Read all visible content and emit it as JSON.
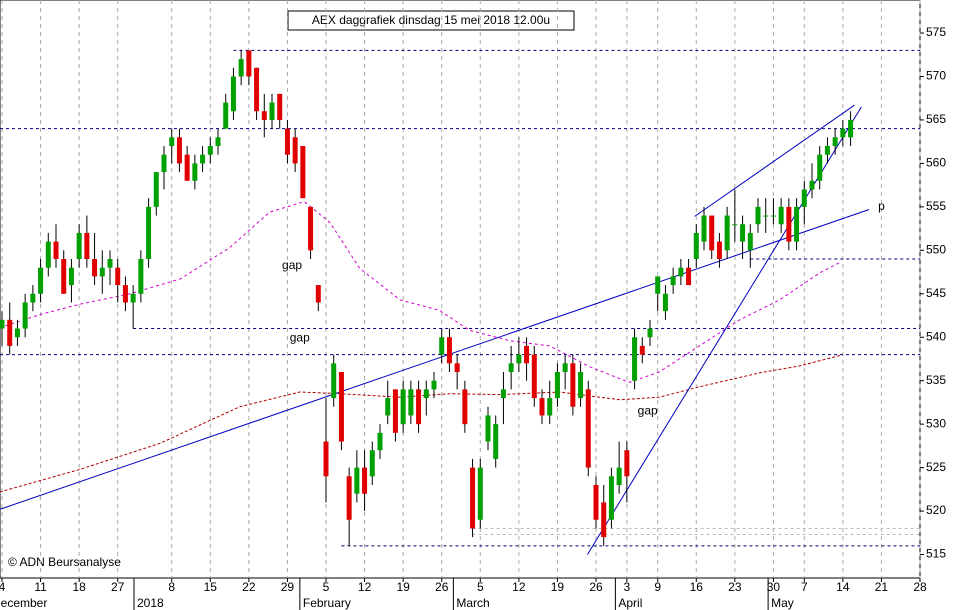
{
  "chart_data": {
    "type": "candlestick",
    "title": "AEX daggrafiek dinsdag 15 mei 2018 12.00u",
    "credit": "© ADN Beursanalyse",
    "up_color": "#00a000",
    "down_color": "#e00000",
    "xlim": [
      -0.26,
      119
    ],
    "ylim": [
      512.3,
      578.8
    ],
    "yticks": [
      515,
      520,
      525,
      530,
      535,
      540,
      545,
      550,
      555,
      560,
      565,
      570,
      575
    ],
    "xticks": [
      {
        "value": 0,
        "label": "4"
      },
      {
        "value": 5,
        "label": "11"
      },
      {
        "value": 10,
        "label": "18"
      },
      {
        "value": 15,
        "label": "27"
      },
      {
        "value": 22,
        "label": "8"
      },
      {
        "value": 27,
        "label": "15"
      },
      {
        "value": 32,
        "label": "22"
      },
      {
        "value": 37,
        "label": "29"
      },
      {
        "value": 42,
        "label": "5"
      },
      {
        "value": 47,
        "label": "12"
      },
      {
        "value": 52,
        "label": "19"
      },
      {
        "value": 57,
        "label": "26"
      },
      {
        "value": 62,
        "label": "5"
      },
      {
        "value": 67,
        "label": "12"
      },
      {
        "value": 72,
        "label": "19"
      },
      {
        "value": 77,
        "label": "26"
      },
      {
        "value": 81,
        "label": "3"
      },
      {
        "value": 85,
        "label": "9"
      },
      {
        "value": 90,
        "label": "16"
      },
      {
        "value": 95,
        "label": "23"
      },
      {
        "value": 100,
        "label": "30"
      },
      {
        "value": 104,
        "label": "7"
      },
      {
        "value": 109,
        "label": "14"
      },
      {
        "value": 114,
        "label": "21"
      },
      {
        "value": 119,
        "label": "28"
      }
    ],
    "month_labels": [
      {
        "value": -1.3,
        "label": "December"
      },
      {
        "value": 17.5,
        "label": "2018"
      },
      {
        "value": 39.0,
        "label": "February"
      },
      {
        "value": 58.9,
        "label": "March"
      },
      {
        "value": 79.9,
        "label": "April"
      },
      {
        "value": 99.7,
        "label": "May"
      }
    ],
    "grid": true,
    "x": [
      0,
      1,
      2,
      3,
      4,
      5,
      6,
      7,
      8,
      9,
      10,
      11,
      12,
      13,
      14,
      15,
      16,
      17,
      18,
      19,
      20,
      21,
      22,
      23,
      24,
      25,
      26,
      27,
      28,
      29,
      30,
      31,
      32,
      33,
      34,
      35,
      36,
      37,
      38,
      39,
      40,
      41,
      42,
      43,
      44,
      45,
      46,
      47,
      48,
      49,
      50,
      51,
      52,
      53,
      54,
      55,
      56,
      57,
      58,
      59,
      60,
      61,
      62,
      63,
      64,
      65,
      66,
      67,
      68,
      69,
      70,
      71,
      72,
      73,
      74,
      75,
      76,
      77,
      78,
      79,
      80,
      81,
      82,
      83,
      84,
      85,
      86,
      87,
      88,
      89,
      90,
      91,
      92,
      93,
      94,
      95,
      96,
      97,
      98,
      99,
      100,
      101,
      102,
      103,
      104,
      105,
      106,
      107,
      108,
      109,
      110
    ],
    "open": [
      541,
      542,
      540,
      541,
      544,
      545,
      548,
      551,
      549,
      546,
      549,
      552,
      549,
      547,
      548,
      548,
      546,
      544,
      545,
      549,
      555,
      559,
      562,
      563,
      561,
      558,
      560,
      561,
      562,
      564,
      566,
      570,
      573,
      571,
      566,
      565,
      568,
      564,
      563,
      562,
      555,
      546,
      528,
      533,
      536,
      524,
      522,
      525,
      524,
      527,
      531,
      534,
      530,
      531,
      534,
      533,
      534,
      538,
      540,
      537,
      534,
      525,
      519,
      528,
      526,
      533,
      536,
      537,
      539,
      538,
      533,
      531,
      533,
      536,
      537,
      533,
      534,
      523,
      521,
      519,
      523,
      527,
      535,
      539,
      540,
      545,
      543,
      546,
      547,
      548,
      549,
      551,
      554,
      551,
      550,
      553,
      551,
      550,
      553,
      554,
      554,
      553,
      555,
      551,
      555,
      557,
      558,
      561,
      562,
      563,
      563
    ],
    "high": [
      543,
      544,
      542,
      545,
      546,
      549,
      552,
      553,
      550,
      549,
      553,
      554,
      552,
      550,
      550,
      549,
      547,
      546,
      550,
      556,
      559,
      562,
      564,
      564,
      562,
      561,
      562,
      563,
      564,
      568,
      571,
      573,
      573,
      571,
      568,
      568,
      568,
      565,
      564,
      562,
      555,
      546,
      533,
      538,
      536,
      525,
      527,
      527,
      528,
      530,
      535,
      534,
      535,
      535,
      535,
      535,
      536,
      541,
      541,
      538,
      535,
      526,
      526,
      532,
      531,
      536,
      539,
      540,
      540,
      539,
      534,
      535,
      537,
      538,
      538,
      537,
      535,
      524,
      523,
      525,
      528,
      528,
      541,
      540,
      542,
      547,
      546,
      548,
      549,
      549,
      553,
      555,
      554,
      552,
      555,
      557,
      554,
      553,
      556,
      556,
      556,
      556,
      556,
      556,
      558,
      560,
      562,
      563,
      564,
      565,
      566
    ],
    "low": [
      539,
      538,
      539,
      540,
      543,
      544,
      547,
      548,
      545,
      544,
      548,
      548,
      546,
      545,
      546,
      544,
      543,
      541,
      544,
      548,
      554,
      557,
      560,
      559,
      558,
      557,
      559,
      560,
      561,
      564,
      565,
      569,
      569,
      565,
      563,
      564,
      564,
      560,
      559,
      556,
      549,
      543,
      521,
      532,
      527,
      516,
      521,
      520,
      523,
      526,
      530,
      528,
      529,
      530,
      529,
      531,
      533,
      537,
      536,
      534,
      529,
      517,
      518,
      527,
      525,
      530,
      534,
      536,
      535,
      532,
      530,
      530,
      532,
      534,
      531,
      532,
      524,
      518,
      516,
      518,
      522,
      521,
      534,
      537,
      539,
      543,
      542,
      545,
      546,
      546,
      548,
      550,
      549,
      548,
      549,
      551,
      549,
      548,
      552,
      552,
      553,
      552,
      550,
      550,
      553,
      556,
      557,
      560,
      561,
      562,
      562
    ],
    "close": [
      542,
      539,
      541,
      544,
      545,
      548,
      551,
      549,
      545,
      548,
      552,
      549,
      547,
      548,
      549,
      546,
      544,
      545,
      549,
      555,
      559,
      561,
      563,
      560,
      558,
      560,
      561,
      562,
      563,
      567,
      570,
      572,
      570,
      566,
      565,
      567,
      565,
      561,
      560,
      556,
      550,
      544,
      524,
      537,
      528,
      519,
      525,
      522,
      527,
      529,
      533,
      529,
      534,
      534,
      530,
      534,
      535,
      540,
      537,
      536,
      530,
      518,
      525,
      531,
      530,
      534,
      537,
      538,
      537,
      533,
      531,
      533,
      536,
      537,
      532,
      536,
      525,
      519,
      517,
      524,
      525,
      524,
      540,
      538,
      541,
      547,
      545,
      547,
      548,
      546,
      552,
      554,
      550,
      549,
      554,
      553,
      553,
      552,
      555,
      554,
      554,
      555,
      551,
      555,
      557,
      558,
      561,
      562,
      563,
      564,
      565
    ],
    "lines": [
      {
        "color": "#d000d0",
        "dash": "3,3",
        "x": [
          -0.3,
          4.9,
          10.1,
          16.6,
          23.1,
          29.5,
          34.7,
          39.2,
          42.5,
          46.4,
          51.6,
          56.7,
          60.6,
          65.8,
          71.0,
          76.2,
          81.3,
          85.2,
          90.4,
          95.6,
          100.8,
          106.0,
          108.6
        ],
        "values": [
          541.1,
          542.6,
          543.8,
          545.0,
          546.7,
          550.3,
          554.4,
          555.6,
          553.2,
          547.9,
          544.3,
          543.1,
          540.8,
          539.6,
          539.0,
          536.6,
          534.8,
          536.0,
          539.0,
          542.0,
          544.3,
          547.4,
          548.6
        ]
      },
      {
        "color": "#b00000",
        "dash": "3,2",
        "x": [
          -0.3,
          10.1,
          20.5,
          30.8,
          38.6,
          43.8,
          51.6,
          58.0,
          64.5,
          72.3,
          80.1,
          85.2,
          90.4,
          98.2,
          103.4,
          108.6
        ],
        "values": [
          522.2,
          524.8,
          527.8,
          532.0,
          533.7,
          533.5,
          533.1,
          533.5,
          533.4,
          533.7,
          532.8,
          533.1,
          534.3,
          535.9,
          536.7,
          537.9
        ]
      },
      {
        "color": "#0000c0",
        "x": [
          -0.26,
          112.4
        ],
        "values": [
          520.2,
          554.7
        ]
      },
      {
        "color": "#0000c0",
        "x": [
          89.8,
          110.5
        ],
        "values": [
          553.9,
          566.7
        ]
      },
      {
        "color": "#0000c0",
        "x": [
          75.9,
          111.4
        ],
        "values": [
          515.0,
          566.5
        ]
      }
    ],
    "levels": [
      {
        "value": 573,
        "x": [
          30,
          119
        ],
        "color": "#000080"
      },
      {
        "value": 564,
        "x": [
          -0.26,
          119
        ],
        "color": "#000080"
      },
      {
        "value": 549,
        "x": [
          97,
          119
        ],
        "color": "#000080"
      },
      {
        "value": 541,
        "x": [
          17,
          119
        ],
        "color": "#000080"
      },
      {
        "value": 538,
        "x": [
          -0.26,
          119
        ],
        "color": "#000080"
      },
      {
        "value": 516,
        "x": [
          44,
          119
        ],
        "color": "#000080"
      },
      {
        "value": 518,
        "x": [
          61,
          119
        ],
        "color": "#bbbbbb"
      },
      {
        "value": 517.3,
        "x": [
          61,
          119
        ],
        "color": "#bbbbbb"
      }
    ],
    "annotations": [
      {
        "text": "gap",
        "x": 37.6,
        "y": 548.2,
        "color": "#999999"
      },
      {
        "text": "gap",
        "x": 38.6,
        "y": 539.9,
        "color": "#999999"
      },
      {
        "text": "gap",
        "x": 83.7,
        "y": 531.5,
        "color": "#000000"
      },
      {
        "text": "p",
        "x": 114,
        "y": 555,
        "color": "#0000c0"
      }
    ]
  }
}
